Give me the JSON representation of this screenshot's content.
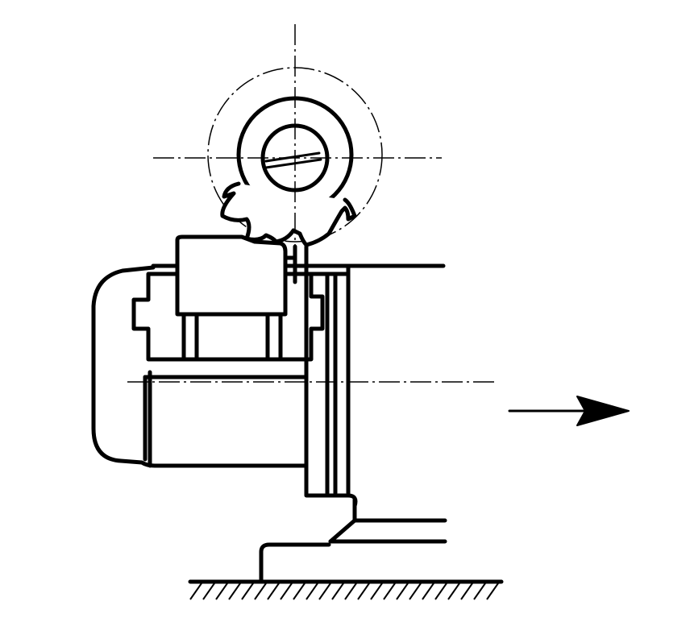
{
  "figure": {
    "type": "technical-drawing",
    "subject": "milling-cutter-and-workpiece",
    "colors": {
      "line": "#000000",
      "background": "#ffffff"
    },
    "feed_arrow": {
      "direction": "right"
    }
  }
}
